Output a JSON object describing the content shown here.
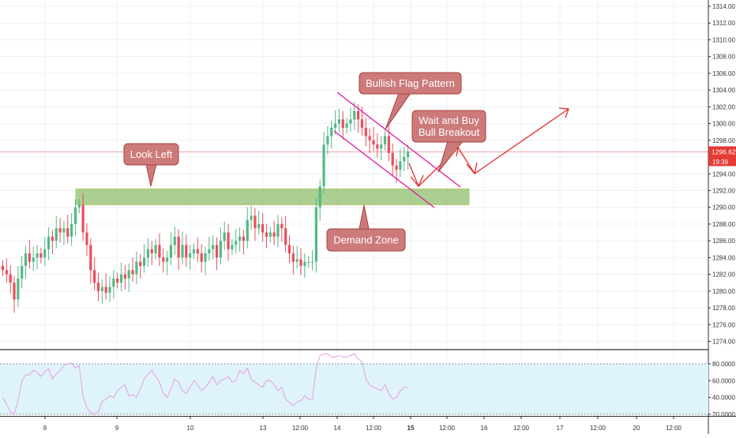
{
  "chart_data": [
    {
      "type": "candlestick",
      "title": "",
      "ylim": [
        1272,
        1315
      ],
      "y_ticks": [
        1274,
        1276,
        1278,
        1280,
        1282,
        1284,
        1286,
        1288,
        1290,
        1292,
        1294,
        1296,
        1298,
        1300,
        1302,
        1304,
        1306,
        1308,
        1310,
        1312,
        1314
      ],
      "y_tick_labels": [
        "1274.00",
        "1276.00",
        "1278.00",
        "1280.00",
        "1282.00",
        "1284.00",
        "1286.00",
        "1288.00",
        "1290.00",
        "1292.00",
        "1294.00",
        "1296.00",
        "1298.00",
        "1300.00",
        "1302.00",
        "1304.00",
        "1306.00",
        "1308.00",
        "1310.00",
        "1312.00",
        "1314.00"
      ],
      "grid": true,
      "last_price": 1296.62,
      "last_price_label": "1296.62",
      "countdown_label": "19:39",
      "colors": {
        "up": "#53b987",
        "down": "#eb4d5c",
        "zone": "#8fbf6e",
        "flag": "#e0189e",
        "arrow": "#e52b2b",
        "callout_fill": "#cc7a7a",
        "callout_edge": "#a84040",
        "price_tag": "#e53935"
      },
      "closes": [
        1282.5,
        1282.0,
        1281.0,
        1279.0,
        1281.5,
        1283.0,
        1284.5,
        1283.5,
        1284.0,
        1284.5,
        1284.0,
        1285.0,
        1286.5,
        1286.0,
        1287.5,
        1287.0,
        1287.5,
        1286.5,
        1288.0,
        1290.0,
        1290.3,
        1287.0,
        1285.5,
        1282.5,
        1281.0,
        1280.0,
        1280.5,
        1279.8,
        1280.5,
        1281.5,
        1281.0,
        1282.0,
        1281.5,
        1282.5,
        1282.0,
        1283.5,
        1283.0,
        1284.0,
        1285.0,
        1284.5,
        1285.5,
        1284.0,
        1283.5,
        1284.0,
        1285.5,
        1286.5,
        1284.0,
        1285.5,
        1284.0,
        1284.5,
        1285.0,
        1284.5,
        1283.5,
        1284.5,
        1285.0,
        1285.5,
        1284.0,
        1286.0,
        1287.0,
        1285.0,
        1285.5,
        1286.0,
        1286.5,
        1286.0,
        1288.5,
        1289.0,
        1287.5,
        1288.0,
        1287.0,
        1286.5,
        1287.0,
        1286.5,
        1288.0,
        1287.5,
        1285.5,
        1284.5,
        1283.5,
        1283.8,
        1283.0,
        1283.5,
        1283.5,
        1283.5,
        1290.0,
        1292.5,
        1297.5,
        1298.5,
        1299.5,
        1300.0,
        1300.5,
        1299.5,
        1300.0,
        1300.5,
        1301.5,
        1300.5,
        1299.5,
        1298.5,
        1298.0,
        1297.5,
        1297.0,
        1297.5,
        1298.5,
        1296.5,
        1295.0,
        1294.5,
        1295.5,
        1296.0,
        1296.6
      ],
      "annotations": {
        "flag_label": "Bullish Flag Pattern",
        "buy_label_line1": "Wait and Buy",
        "buy_label_line2": "Bull Breakout",
        "look_left_label": "Look Left",
        "zone_label": "Demand Zone",
        "zone_range": [
          1290.3,
          1292.2
        ],
        "flag_upper": [
          [
            1300.0,
            1303.5
          ],
          [
            1303.0,
            1294.0
          ]
        ],
        "flag_lower": [
          [
            1299.8,
            1298.0
          ],
          [
            1303.0,
            1289.0
          ]
        ]
      }
    },
    {
      "type": "line",
      "title": "",
      "ylim": [
        18,
        96
      ],
      "y_ticks": [
        20,
        40,
        60,
        80
      ],
      "y_tick_labels": [
        "20.0000",
        "40.0000",
        "60.0000",
        "80.0000"
      ],
      "bands": [
        20,
        80
      ],
      "values": [
        40,
        32,
        23,
        20,
        36,
        60,
        67,
        67,
        72,
        70,
        65,
        71,
        74,
        62,
        68,
        72,
        78,
        80,
        81,
        75,
        78,
        41,
        28,
        22,
        20,
        23,
        35,
        38,
        42,
        40,
        48,
        52,
        55,
        42,
        43,
        40,
        50,
        62,
        68,
        72,
        65,
        58,
        45,
        40,
        50,
        62,
        58,
        48,
        45,
        52,
        60,
        55,
        48,
        52,
        58,
        65,
        55,
        60,
        62,
        65,
        58,
        60,
        72,
        68,
        75,
        62,
        58,
        55,
        52,
        60,
        60,
        55,
        48,
        52,
        38,
        34,
        30,
        35,
        36,
        42,
        38,
        38,
        74,
        90,
        92,
        92,
        88,
        88,
        90,
        88,
        88,
        90,
        92,
        86,
        82,
        62,
        55,
        52,
        50,
        48,
        55,
        45,
        38,
        40,
        48,
        52,
        52
      ]
    }
  ],
  "x_axis": {
    "labels": [
      "8",
      "9",
      "10",
      "13",
      "12:00",
      "14",
      "12:00",
      "15",
      "12:00",
      "16",
      "12:00",
      "17",
      "12:00",
      "20",
      "12:00"
    ],
    "bold": [
      false,
      false,
      false,
      false,
      false,
      false,
      false,
      true,
      false,
      false,
      false,
      false,
      false,
      false,
      false
    ]
  }
}
